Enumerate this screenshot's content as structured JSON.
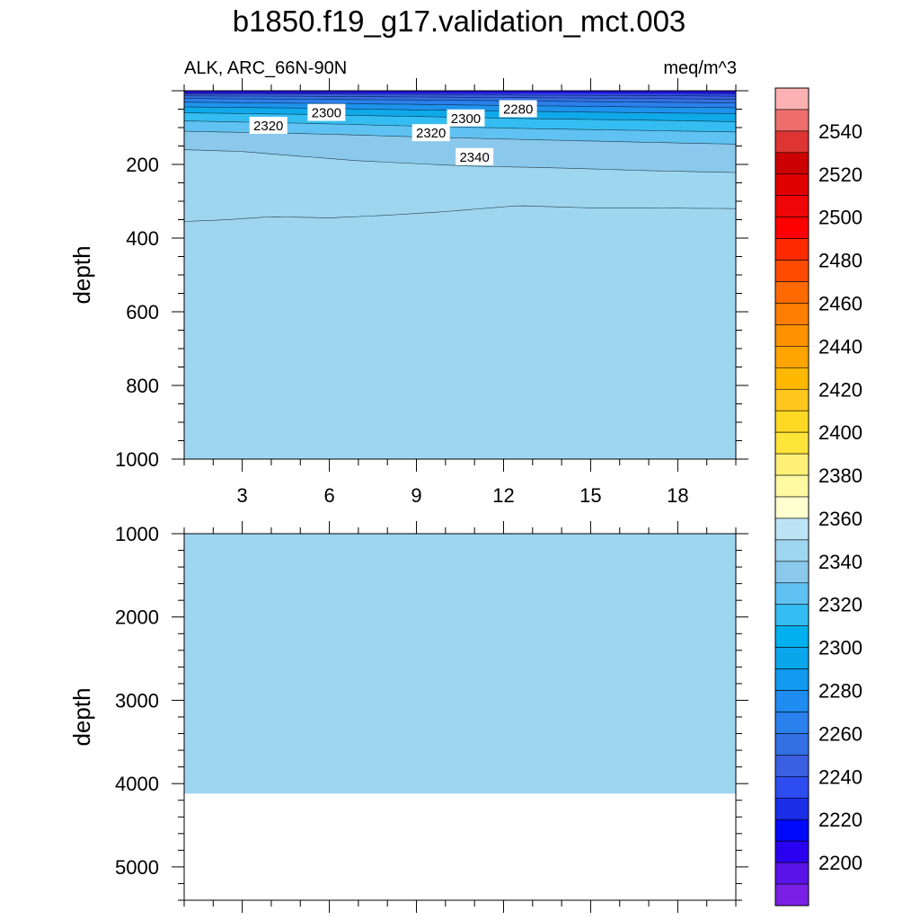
{
  "title": "b1850.f19_g17.validation_mct.003",
  "chart_data": [
    {
      "type": "contour",
      "panel": "upper",
      "left_label": "ALK, ARC_66N-90N",
      "right_label": "meq/m^3",
      "ylabel": "depth",
      "xlabel": "",
      "xlim": [
        1,
        20
      ],
      "ylim": [
        1000,
        0
      ],
      "x_ticks": [
        "3",
        "6",
        "9",
        "12",
        "15",
        "18"
      ],
      "y_ticks": [
        "200",
        "400",
        "600",
        "800",
        "1000"
      ],
      "contour_labels": [
        {
          "text": "2320",
          "x": 3.9,
          "depth": 95
        },
        {
          "text": "2300",
          "x": 5.9,
          "depth": 60
        },
        {
          "text": "2320",
          "x": 9.5,
          "depth": 115
        },
        {
          "text": "2300",
          "x": 10.7,
          "depth": 75
        },
        {
          "text": "2280",
          "x": 12.5,
          "depth": 50
        },
        {
          "text": "2340",
          "x": 11.0,
          "depth": 180
        }
      ],
      "contours": [
        {
          "level": 2350,
          "fill": "#9ed6f0",
          "x": [
            1,
            2.5,
            4,
            6,
            8,
            10,
            12.5,
            15,
            17,
            20
          ],
          "depth": [
            355,
            350,
            342,
            345,
            338,
            328,
            312,
            318,
            318,
            320
          ]
        },
        {
          "level": 2340,
          "fill": "#8ac9ec",
          "x": [
            1,
            3,
            5,
            7,
            9,
            11,
            13,
            15,
            17,
            20
          ],
          "depth": [
            160,
            165,
            178,
            190,
            198,
            205,
            208,
            212,
            217,
            222
          ]
        },
        {
          "level": 2330,
          "fill": "#5fc2f2",
          "x": [
            1,
            5,
            9,
            13,
            17,
            20
          ],
          "depth": [
            110,
            116,
            125,
            133,
            140,
            145
          ]
        },
        {
          "level": 2320,
          "fill": "#34bdf2",
          "x": [
            1,
            5,
            9,
            13,
            17,
            20
          ],
          "depth": [
            82,
            88,
            96,
            103,
            108,
            112
          ]
        },
        {
          "level": 2310,
          "fill": "#0fa9ea",
          "x": [
            1,
            5,
            9,
            13,
            17,
            20
          ],
          "depth": [
            60,
            64,
            70,
            76,
            80,
            84
          ]
        },
        {
          "level": 2300,
          "fill": "#1e93ed",
          "x": [
            1,
            5,
            9,
            13,
            17,
            20
          ],
          "depth": [
            44,
            47,
            52,
            56,
            60,
            62
          ]
        },
        {
          "level": 2290,
          "fill": "#2a80ec",
          "x": [
            1,
            5,
            9,
            13,
            17,
            20
          ],
          "depth": [
            31,
            34,
            37,
            41,
            44,
            46
          ]
        },
        {
          "level": 2280,
          "fill": "#3270e3",
          "x": [
            1,
            5,
            9,
            13,
            17,
            20
          ],
          "depth": [
            21,
            23,
            25,
            28,
            31,
            33
          ]
        },
        {
          "level": 2270,
          "fill": "#3a5fe0",
          "x": [
            1,
            5,
            9,
            13,
            17,
            20
          ],
          "depth": [
            14,
            15,
            17,
            19,
            21,
            23
          ]
        },
        {
          "level": 2260,
          "fill": "#2d4df0",
          "x": [
            1,
            5,
            9,
            13,
            17,
            20
          ],
          "depth": [
            8,
            9,
            10,
            12,
            13,
            15
          ]
        },
        {
          "level": 2240,
          "fill": "#1a2ee8",
          "x": [
            1,
            5,
            9,
            13,
            17,
            20
          ],
          "depth": [
            3,
            4,
            5,
            6,
            7,
            8
          ]
        }
      ]
    },
    {
      "type": "contour",
      "panel": "lower",
      "ylabel": "depth",
      "xlabel": "",
      "xlim": [
        1,
        20
      ],
      "ylim": [
        5400,
        1000
      ],
      "y_ticks": [
        "1000",
        "2000",
        "3000",
        "4000",
        "5000"
      ],
      "uniform_fill": "#9ed6f0",
      "ocean_bottom": 4120
    }
  ],
  "colorbar": {
    "labels": [
      "2540",
      "2520",
      "2500",
      "2480",
      "2460",
      "2440",
      "2420",
      "2400",
      "2380",
      "2360",
      "2340",
      "2320",
      "2300",
      "2280",
      "2260",
      "2240",
      "2220",
      "2200"
    ],
    "colors": [
      "#fcb2b2",
      "#ee6e6e",
      "#de3432",
      "#cc0000",
      "#e00000",
      "#f00606",
      "#ff0000",
      "#ff2a00",
      "#ff4b00",
      "#ff6a00",
      "#ff7d00",
      "#ff9200",
      "#ffa400",
      "#ffb800",
      "#ffc71e",
      "#ffd824",
      "#ffe43a",
      "#fff078",
      "#fff9a2",
      "#ffffd0",
      "#bde4f4",
      "#9ed6f0",
      "#8ac9ec",
      "#5fc2f2",
      "#34bdf2",
      "#00b0f0",
      "#0aa6ec",
      "#1299f0",
      "#1e8cf0",
      "#2a80ec",
      "#3270e3",
      "#3a5fe0",
      "#2d4df0",
      "#1a2ee8",
      "#0008fa",
      "#2a00f0",
      "#5a14ea",
      "#7a20e6"
    ]
  }
}
